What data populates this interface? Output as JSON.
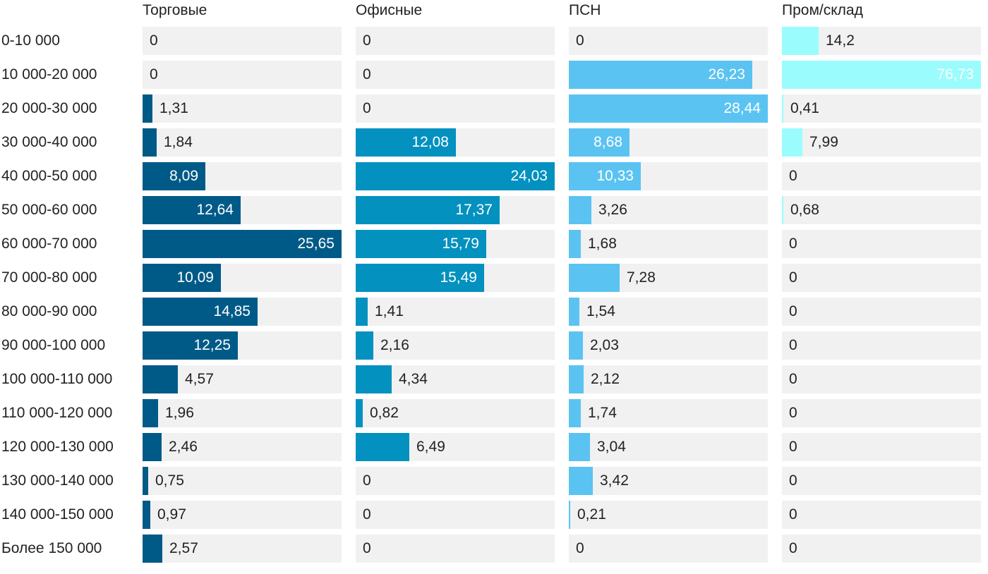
{
  "chart_data": {
    "type": "bar",
    "orientation": "horizontal",
    "layout": "small-multiples",
    "categories": [
      "0-10 000",
      "10 000-20 000",
      "20 000-30 000",
      "30 000-40 000",
      "40 000-50 000",
      "50 000-60 000",
      "60 000-70 000",
      "70 000-80 000",
      "80 000-90 000",
      "90 000-100 000",
      "100 000-110 000",
      "110 000-120 000",
      "120 000-130 000",
      "130 000-140 000",
      "140 000-150 000",
      "Более 150 000"
    ],
    "series": [
      {
        "name": "Торговые",
        "color": "#005a87",
        "values": [
          0,
          0,
          1.31,
          1.84,
          8.09,
          12.64,
          25.65,
          10.09,
          14.85,
          12.25,
          4.57,
          1.96,
          2.46,
          0.75,
          0.97,
          2.57
        ],
        "labels": [
          "0",
          "0",
          "1,31",
          "1,84",
          "8,09",
          "12,64",
          "25,65",
          "10,09",
          "14,85",
          "12,25",
          "4,57",
          "1,96",
          "2,46",
          "0,75",
          "0,97",
          "2,57"
        ]
      },
      {
        "name": "Офисные",
        "color": "#0391bf",
        "values": [
          0,
          0,
          0,
          12.08,
          24.03,
          17.37,
          15.79,
          15.49,
          1.41,
          2.16,
          4.34,
          0.82,
          6.49,
          0,
          0,
          0
        ],
        "labels": [
          "0",
          "0",
          "0",
          "12,08",
          "24,03",
          "17,37",
          "15,79",
          "15,49",
          "1,41",
          "2,16",
          "4,34",
          "0,82",
          "6,49",
          "0",
          "0",
          "0"
        ]
      },
      {
        "name": "ПСН",
        "color": "#5bc3f1",
        "values": [
          0,
          26.23,
          28.44,
          8.68,
          10.33,
          3.26,
          1.68,
          7.28,
          1.54,
          2.03,
          2.12,
          1.74,
          3.04,
          3.42,
          0.21,
          0
        ],
        "labels": [
          "0",
          "26,23",
          "28,44",
          "8,68",
          "10,33",
          "3,26",
          "1,68",
          "7,28",
          "1,54",
          "2,03",
          "2,12",
          "1,74",
          "3,04",
          "3,42",
          "0,21",
          "0"
        ]
      },
      {
        "name": "Пром/склад",
        "color": "#9bfcfd",
        "values": [
          14.2,
          76.73,
          0.41,
          7.99,
          0,
          0.68,
          0,
          0,
          0,
          0,
          0,
          0,
          0,
          0,
          0,
          0
        ],
        "labels": [
          "14,2",
          "76,73",
          "0,41",
          "7,99",
          "0",
          "0,68",
          "0",
          "0",
          "0",
          "0",
          "0",
          "0",
          "0",
          "0",
          "0",
          "0"
        ]
      }
    ],
    "title": "",
    "xlabel": "",
    "ylabel": "",
    "grid": false,
    "legend": "none"
  }
}
